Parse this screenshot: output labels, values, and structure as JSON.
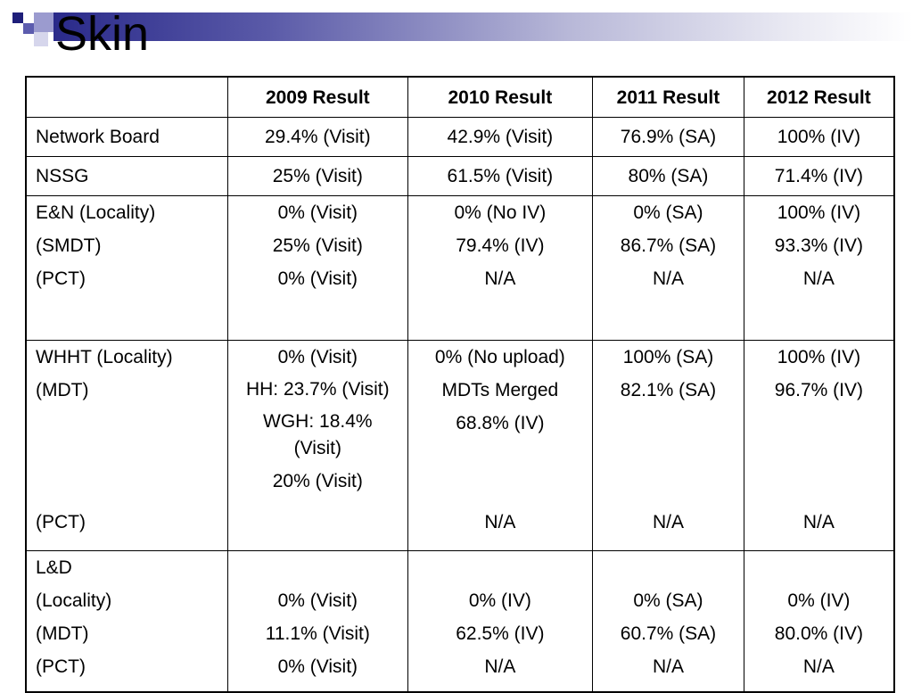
{
  "slide": {
    "title": "Skin"
  },
  "table": {
    "headers": [
      "",
      "2009 Result",
      "2010 Result",
      "2011 Result",
      "2012 Result"
    ],
    "rows": [
      {
        "label": "Network Board",
        "c2009": "29.4% (Visit)",
        "c2010": "42.9% (Visit)",
        "c2011": "76.9% (SA)",
        "c2012": "100% (IV)"
      },
      {
        "label": "NSSG",
        "c2009": "25% (Visit)",
        "c2010": "61.5% (Visit)",
        "c2011": "80% (SA)",
        "c2012": "71.4% (IV)"
      },
      {
        "labels": [
          "E&N (Locality)",
          "(SMDT)",
          "(PCT)"
        ],
        "c2009": [
          "0% (Visit)",
          "25% (Visit)",
          "0% (Visit)"
        ],
        "c2010": [
          "0% (No IV)",
          "79.4% (IV)",
          "N/A"
        ],
        "c2011": [
          "0% (SA)",
          "86.7% (SA)",
          "N/A"
        ],
        "c2012": [
          "100% (IV)",
          "93.3% (IV)",
          "N/A"
        ]
      },
      {
        "labels": [
          "WHHT (Locality)",
          "(MDT)",
          "(PCT)"
        ],
        "c2009": [
          "0% (Visit)",
          "HH: 23.7% (Visit)",
          "WGH: 18.4% (Visit)",
          "20% (Visit)"
        ],
        "c2010": [
          "0% (No upload)",
          "MDTs Merged",
          "68.8% (IV)",
          "N/A"
        ],
        "c2011": [
          "100% (SA)",
          "82.1% (SA)",
          "N/A"
        ],
        "c2012": [
          "100% (IV)",
          "96.7% (IV)",
          "N/A"
        ]
      },
      {
        "labels": [
          "L&D",
          "(Locality)",
          "(MDT)",
          "(PCT)"
        ],
        "c2009": [
          "0% (Visit)",
          "11.1% (Visit)",
          "0% (Visit)"
        ],
        "c2010": [
          "0% (IV)",
          "62.5% (IV)",
          "N/A"
        ],
        "c2011": [
          "0% (SA)",
          "60.7% (SA)",
          "N/A"
        ],
        "c2012": [
          "0% (IV)",
          "80.0% (IV)",
          "N/A"
        ]
      }
    ]
  }
}
